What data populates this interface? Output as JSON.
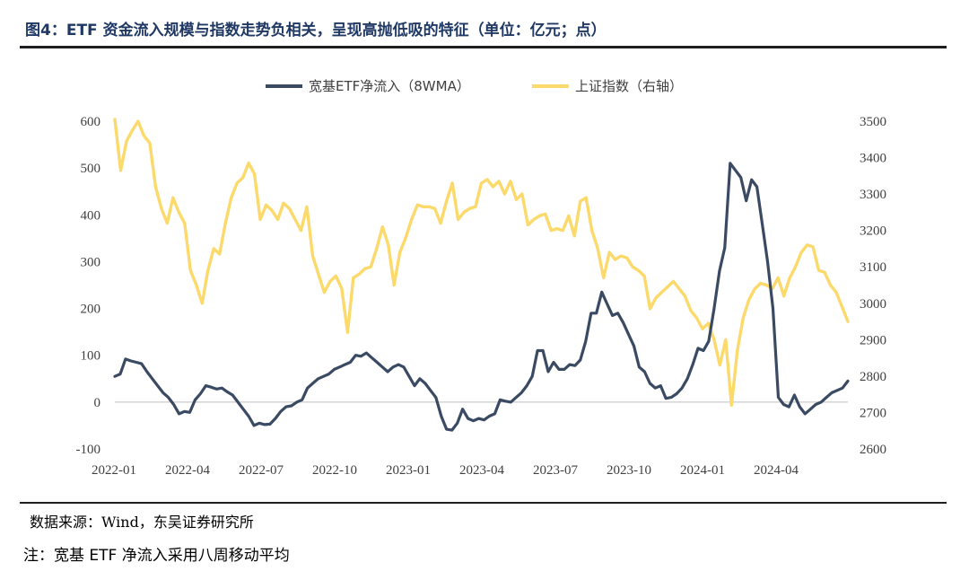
{
  "header": {
    "title": "图4：ETF 资金流入规模与指数走势负相关，呈现高抛低吸的特征（单位：亿元；点）"
  },
  "footer": {
    "source": "数据来源：Wind，东吴证券研究所",
    "note": "注：宽基 ETF 净流入采用八周移动平均"
  },
  "chart_data": {
    "type": "line",
    "x_tick_labels": [
      "2022-01",
      "2022-04",
      "2022-07",
      "2022-10",
      "2023-01",
      "2023-04",
      "2023-07",
      "2023-10",
      "2024-01",
      "2024-04"
    ],
    "left_axis": {
      "ticks": [
        "600",
        "500",
        "400",
        "300",
        "200",
        "100",
        "0",
        "-100"
      ],
      "ylim": [
        -100,
        600
      ]
    },
    "right_axis": {
      "ticks": [
        "3500",
        "3400",
        "3300",
        "3200",
        "3100",
        "3000",
        "2900",
        "2800",
        "2700",
        "2600"
      ],
      "ylim": [
        2600,
        3500
      ]
    },
    "legend_position": "top-center",
    "grid": false,
    "series": [
      {
        "name": "宽基ETF净流入（8WMA）",
        "axis": "left",
        "color": "#3b4a63",
        "values": [
          55,
          60,
          92,
          88,
          85,
          82,
          65,
          50,
          35,
          20,
          10,
          -5,
          -25,
          -20,
          -22,
          5,
          18,
          35,
          32,
          28,
          30,
          22,
          15,
          0,
          -15,
          -30,
          -50,
          -45,
          -48,
          -47,
          -35,
          -20,
          -10,
          -8,
          0,
          5,
          30,
          40,
          50,
          55,
          60,
          70,
          75,
          80,
          85,
          100,
          98,
          105,
          95,
          85,
          75,
          65,
          75,
          80,
          75,
          55,
          35,
          50,
          40,
          25,
          10,
          -30,
          -58,
          -60,
          -45,
          -15,
          -35,
          -40,
          -35,
          -38,
          -30,
          -25,
          5,
          2,
          0,
          10,
          20,
          35,
          55,
          110,
          110,
          65,
          85,
          70,
          70,
          80,
          78,
          90,
          130,
          190,
          190,
          235,
          210,
          185,
          190,
          170,
          145,
          120,
          75,
          65,
          40,
          30,
          35,
          8,
          10,
          18,
          30,
          50,
          80,
          115,
          110,
          130,
          200,
          280,
          330,
          510,
          495,
          480,
          430,
          475,
          460,
          380,
          300,
          200,
          10,
          -5,
          -10,
          15,
          -10,
          -25,
          -15,
          -5,
          0,
          10,
          20,
          25,
          30,
          45
        ],
        "note": "values in 亿元, weekly approx."
      },
      {
        "name": "上证指数（右轴）",
        "axis": "right",
        "color": "#fcd96b",
        "values": [
          3505,
          3365,
          3445,
          3475,
          3500,
          3460,
          3440,
          3320,
          3260,
          3220,
          3290,
          3250,
          3220,
          3090,
          3050,
          3000,
          3090,
          3150,
          3135,
          3220,
          3290,
          3330,
          3345,
          3385,
          3355,
          3230,
          3270,
          3255,
          3230,
          3275,
          3260,
          3230,
          3200,
          3265,
          3130,
          3080,
          3030,
          3060,
          3075,
          3040,
          2920,
          3070,
          3080,
          3095,
          3100,
          3150,
          3210,
          3160,
          3050,
          3140,
          3180,
          3230,
          3270,
          3265,
          3265,
          3260,
          3220,
          3280,
          3330,
          3230,
          3250,
          3260,
          3265,
          3330,
          3340,
          3320,
          3335,
          3300,
          3335,
          3285,
          3300,
          3215,
          3230,
          3240,
          3245,
          3200,
          3205,
          3200,
          3240,
          3185,
          3280,
          3290,
          3200,
          3150,
          3070,
          3140,
          3120,
          3130,
          3125,
          3100,
          3090,
          3075,
          2985,
          3015,
          3030,
          3045,
          3060,
          3040,
          3020,
          2980,
          2960,
          2930,
          2945,
          2900,
          2830,
          2900,
          2720,
          2870,
          2960,
          3010,
          3040,
          3055,
          3050,
          3040,
          3070,
          3020,
          3070,
          3100,
          3140,
          3160,
          3155,
          3090,
          3085,
          3050,
          3030,
          2990,
          2950
        ]
      }
    ]
  }
}
